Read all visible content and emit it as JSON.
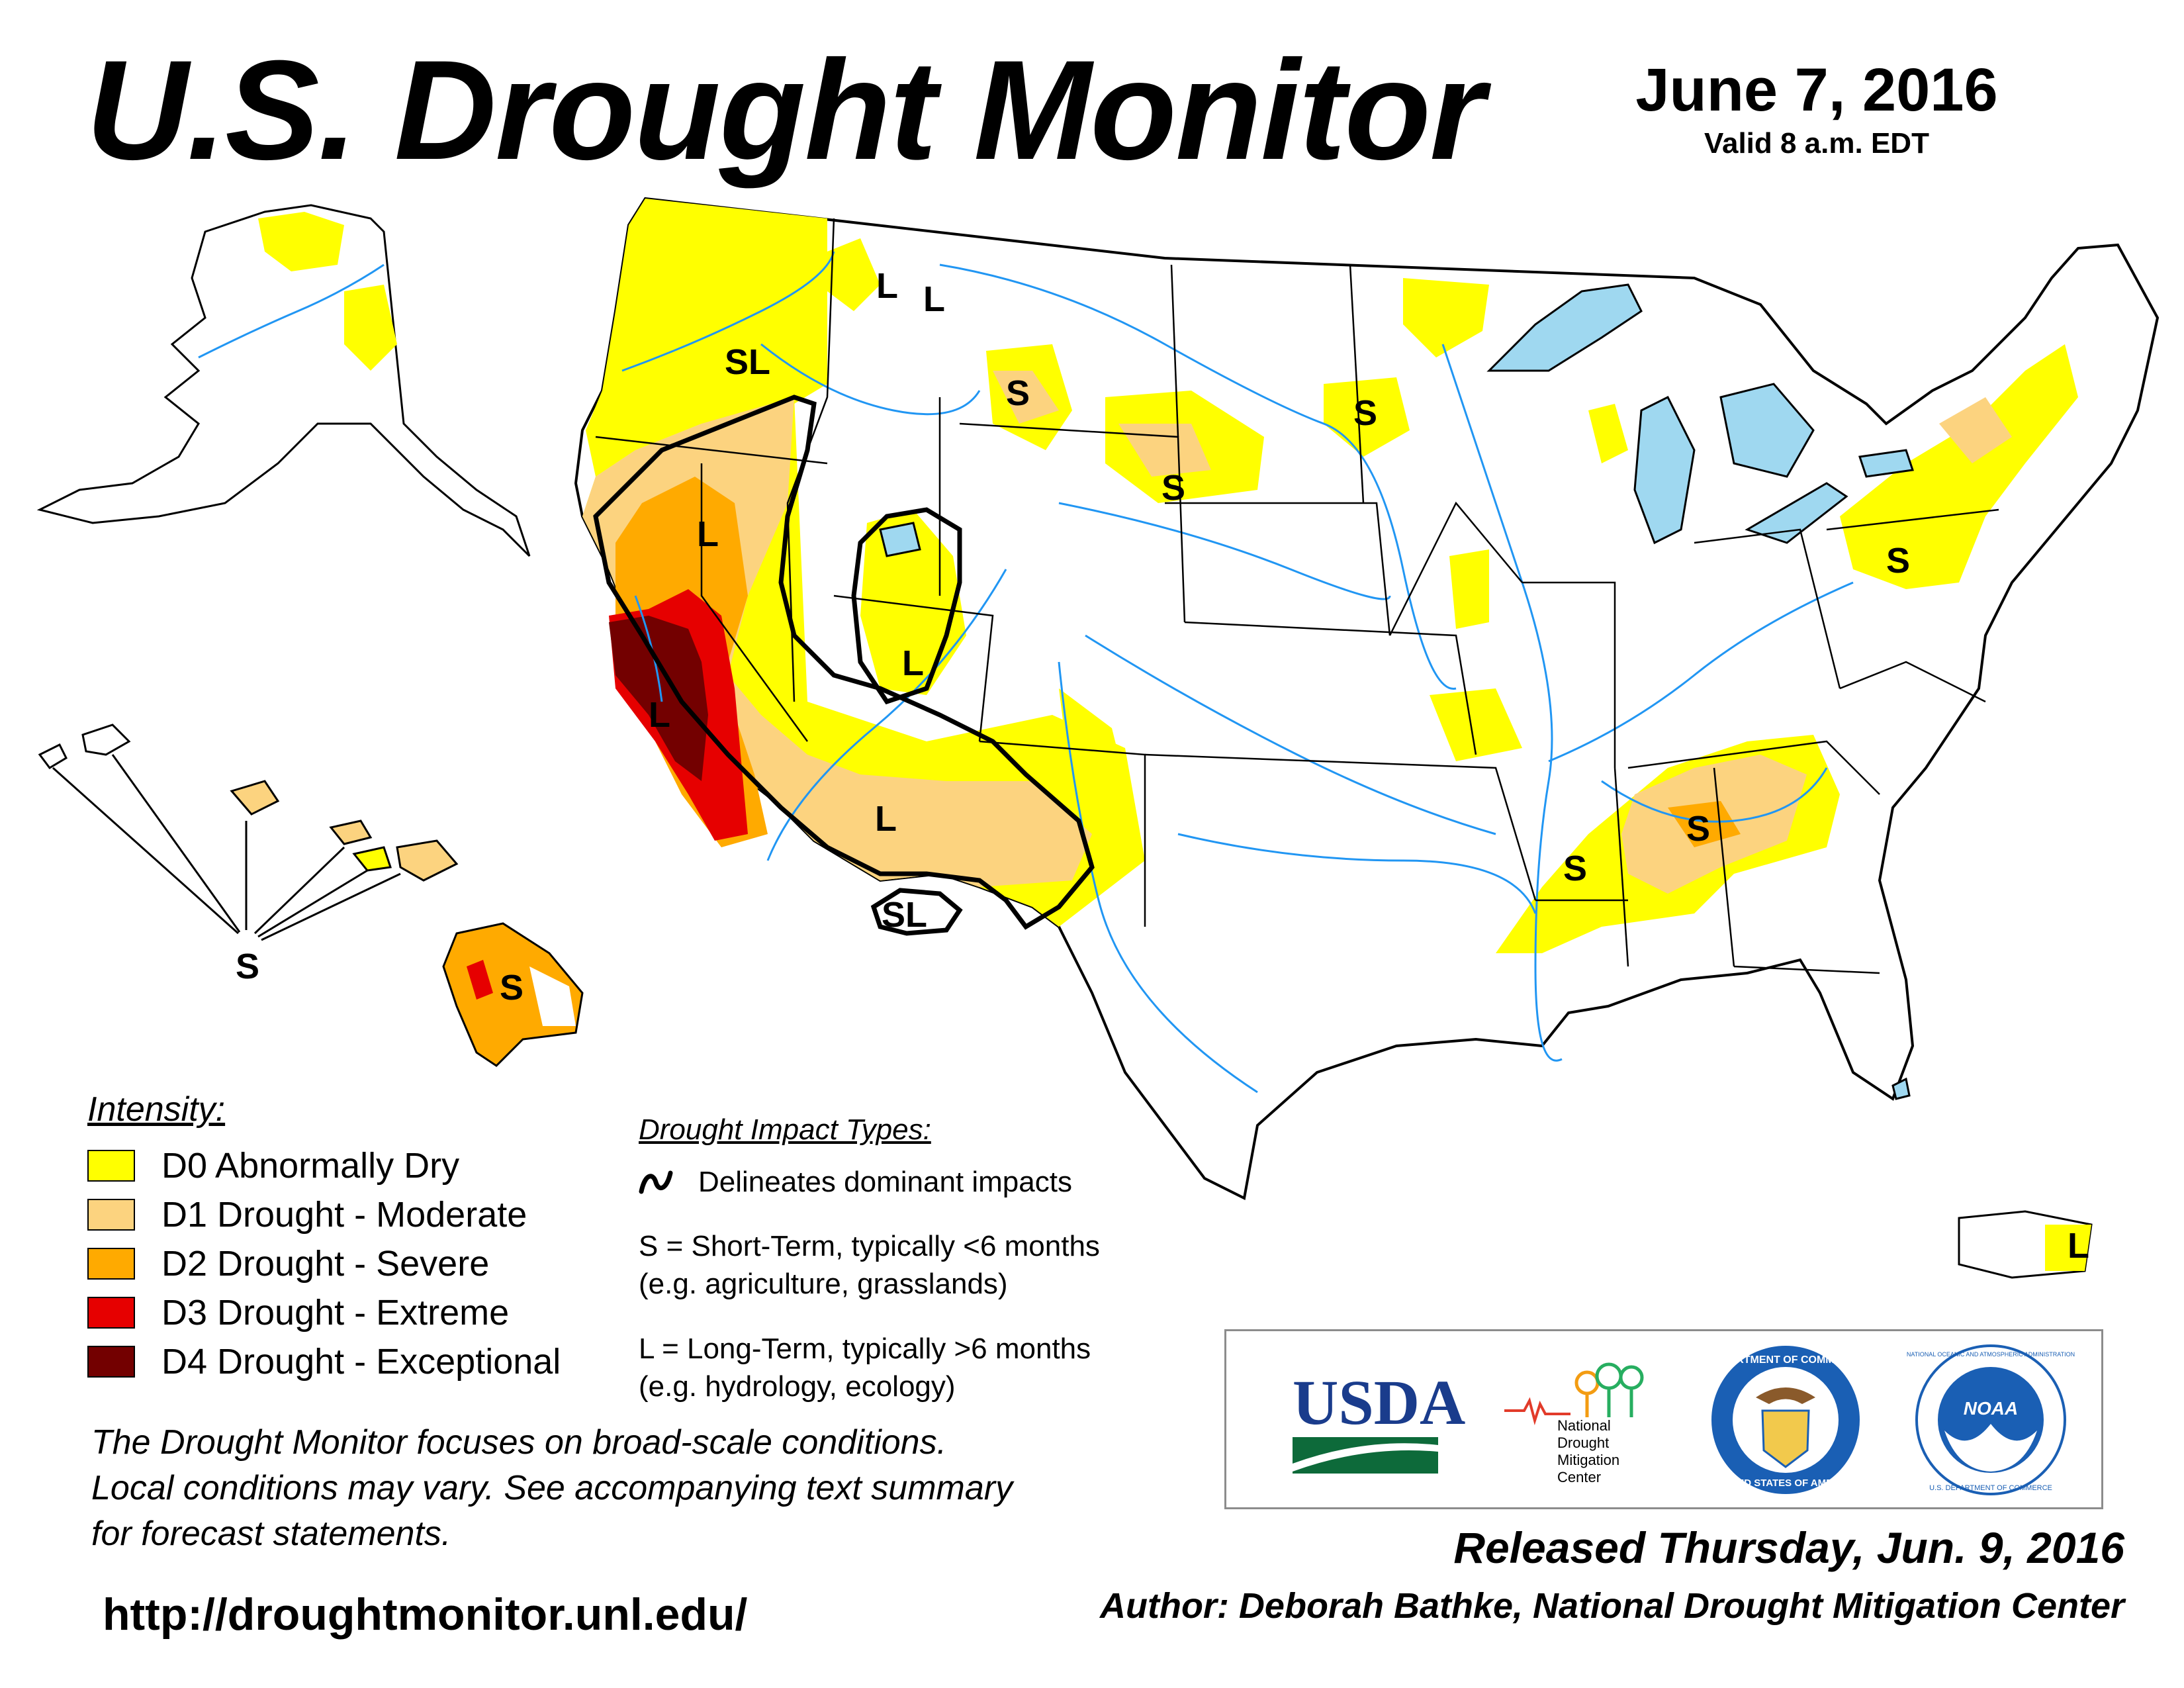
{
  "header": {
    "title": "U.S. Drought Monitor",
    "date": "June 7, 2016",
    "valid": "Valid 8 a.m. EDT"
  },
  "map": {
    "impact_labels": [
      "L",
      "L",
      "SL",
      "S",
      "S",
      "S",
      "L",
      "L",
      "L",
      "L",
      "SL",
      "S",
      "S",
      "S",
      "S",
      "L",
      "S"
    ],
    "colors": {
      "d0": "#ffff00",
      "d1": "#fcd37f",
      "d2": "#ffaa00",
      "d3": "#e60000",
      "d4": "#730000",
      "water": "#9fd8f0",
      "river": "#2196f3"
    }
  },
  "legend": {
    "intensity_title": "Intensity:",
    "items": [
      {
        "label": "D0 Abnormally Dry",
        "color": "#ffff00"
      },
      {
        "label": "D1 Drought - Moderate",
        "color": "#fcd37f"
      },
      {
        "label": "D2 Drought - Severe",
        "color": "#ffaa00"
      },
      {
        "label": "D3 Drought - Extreme",
        "color": "#e60000"
      },
      {
        "label": "D4 Drought - Exceptional",
        "color": "#730000"
      }
    ],
    "impact_title": "Drought Impact Types:",
    "delineates": "Delineates dominant impacts",
    "short_term_1": "S = Short-Term, typically <6 months",
    "short_term_2": "(e.g. agriculture, grasslands)",
    "long_term_1": "L = Long-Term, typically >6 months",
    "long_term_2": "(e.g. hydrology, ecology)"
  },
  "footer": {
    "note_1": "The Drought Monitor focuses on broad-scale conditions.",
    "note_2": "Local conditions may vary. See accompanying text summary",
    "note_3": "for forecast statements.",
    "url": "http://droughtmonitor.unl.edu/",
    "released": "Released Thursday, Jun. 9, 2016",
    "author": "Author: Deborah Bathke, National Drought Mitigation Center"
  },
  "logos": {
    "usda": "USDA",
    "ndmc_1": "National",
    "ndmc_2": "Drought",
    "ndmc_3": "Mitigation",
    "ndmc_4": "Center",
    "doc_ring": "DEPARTMENT OF COMMERCE",
    "doc_bottom": "UNITED STATES OF AMERICA",
    "noaa": "NOAA",
    "noaa_ring": "NATIONAL OCEANIC AND ATMOSPHERIC ADMINISTRATION",
    "noaa_bottom": "U.S. DEPARTMENT OF COMMERCE"
  }
}
